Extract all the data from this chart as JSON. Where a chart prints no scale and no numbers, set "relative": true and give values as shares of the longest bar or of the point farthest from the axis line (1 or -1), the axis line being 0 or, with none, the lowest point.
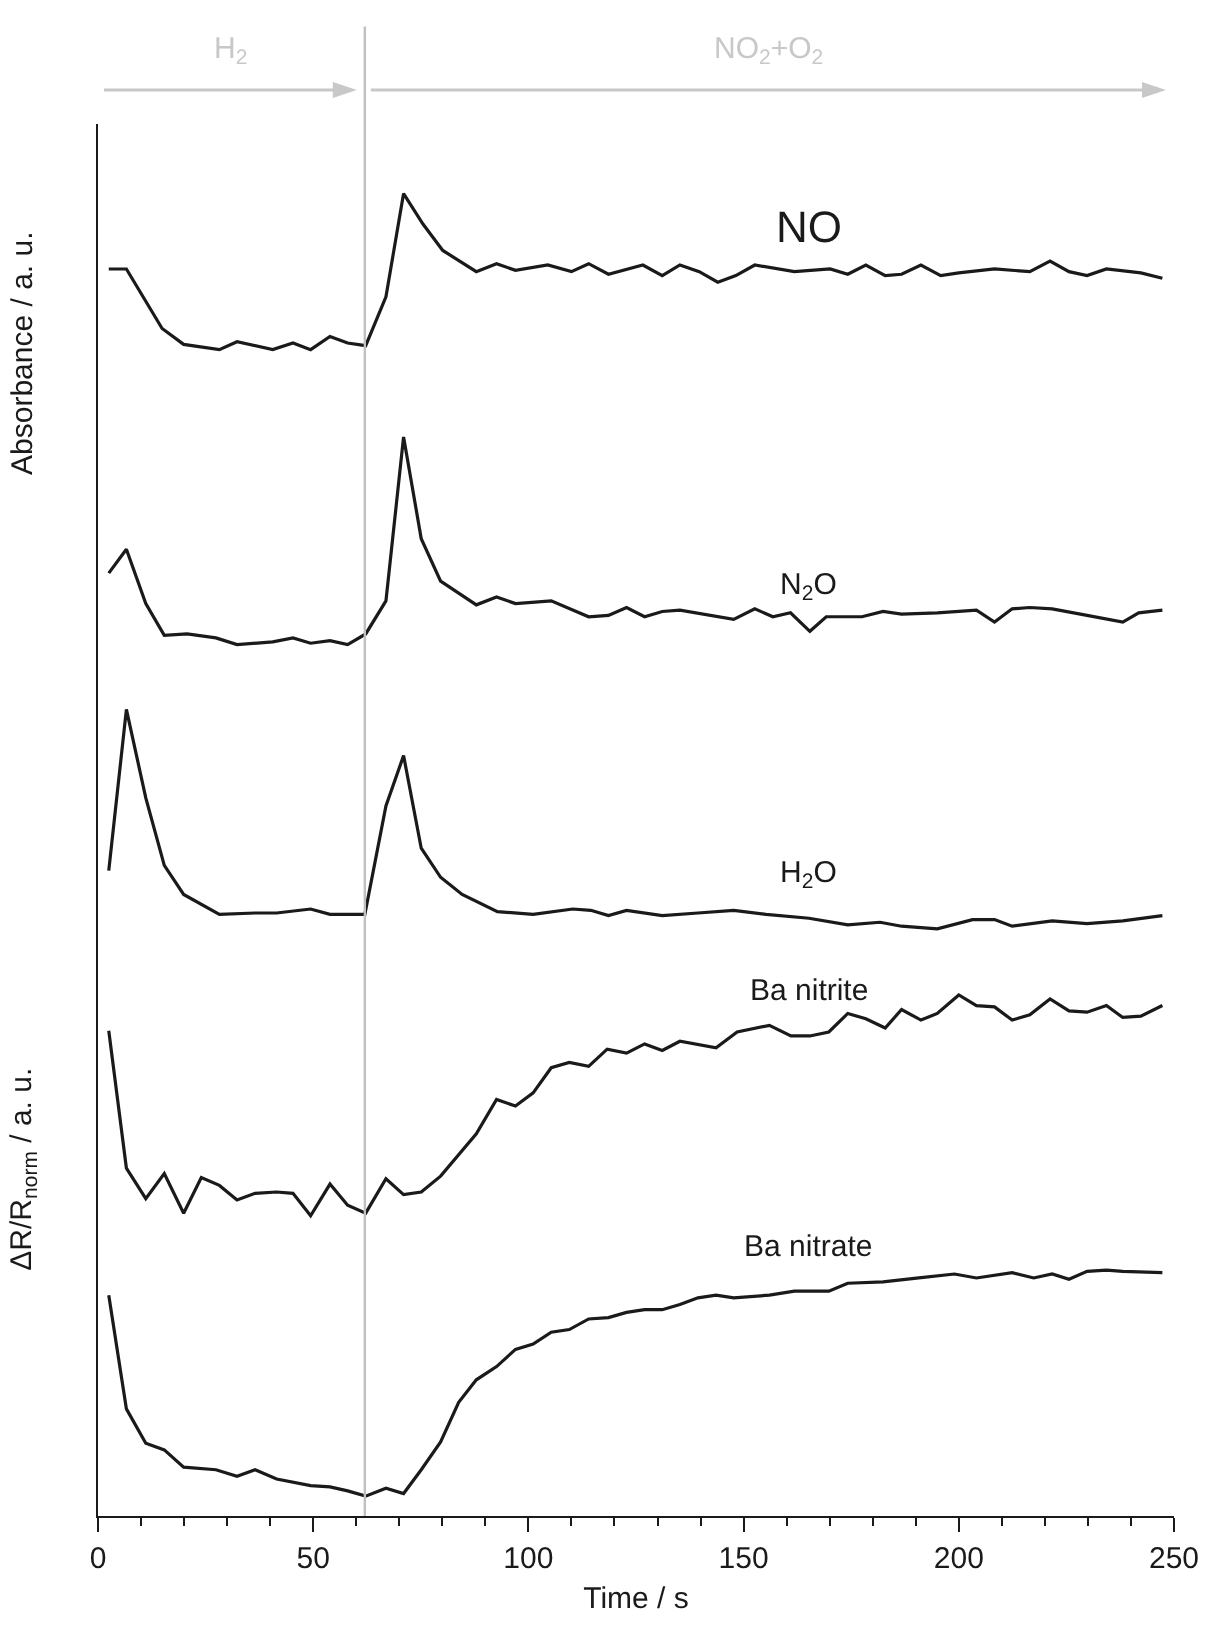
{
  "chart_data": {
    "type": "line",
    "relative": true,
    "xlabel": "Time / s",
    "ylabel": "Absorbance / a. u.",
    "annotations": [
      "ΔR/R$_{norm}$ / a. u.",
      "H$_{2}$",
      "NO$_{2}$+O$_{2}$"
    ],
    "xlim": [
      0,
      250
    ],
    "xticks": [
      0,
      50,
      100,
      150,
      200,
      250
    ],
    "grid": false,
    "legend": false,
    "marker": "none",
    "line_style": "solid",
    "ref_lines": [
      {
        "axis": "x",
        "value": 62,
        "color": "#c0c0c0"
      }
    ],
    "series": [
      {
        "name": "NO",
        "color": "#1a1a1a",
        "x": [
          2.5,
          6.6,
          14.9,
          19.9,
          28.2,
          32.3,
          40.6,
          45.3,
          49.4,
          53.9,
          58.0,
          62.2,
          66.9,
          71.0,
          75.5,
          80.1,
          87.9,
          92.6,
          97.0,
          104.5,
          110.0,
          114.0,
          118.6,
          126.6,
          131.1,
          135.2,
          139.7,
          144.0,
          148.2,
          152.6,
          161.8,
          170.1,
          174.2,
          178.4,
          182.9,
          186.7,
          191.2,
          195.8,
          200.0,
          208.3,
          216.5,
          221.2,
          225.6,
          229.8,
          234.3,
          242.3,
          247.3
        ],
        "values": [
          0.943,
          0.943,
          0.898,
          0.886,
          0.882,
          0.888,
          0.882,
          0.887,
          0.882,
          0.892,
          0.887,
          0.885,
          0.922,
          1.0,
          0.977,
          0.957,
          0.941,
          0.947,
          0.942,
          0.946,
          0.941,
          0.947,
          0.939,
          0.946,
          0.938,
          0.946,
          0.941,
          0.933,
          0.938,
          0.946,
          0.941,
          0.943,
          0.939,
          0.946,
          0.938,
          0.939,
          0.946,
          0.938,
          0.94,
          0.943,
          0.941,
          0.949,
          0.941,
          0.938,
          0.943,
          0.94,
          0.936
        ]
      },
      {
        "name": "N$_{2}$O",
        "color": "#1a1a1a",
        "x": [
          2.5,
          6.6,
          11.1,
          15.4,
          20.7,
          27.4,
          32.3,
          40.6,
          45.3,
          49.4,
          53.9,
          58.0,
          62.2,
          66.9,
          71.0,
          75.1,
          79.6,
          87.9,
          92.6,
          97.0,
          105.3,
          114.0,
          118.6,
          122.8,
          127.0,
          131.1,
          135.2,
          147.7,
          152.6,
          156.8,
          160.9,
          165.4,
          169.2,
          177.5,
          182.4,
          186.7,
          195.0,
          204.1,
          208.3,
          212.4,
          216.5,
          221.7,
          229.8,
          238.1,
          241.8,
          247.3
        ],
        "values": [
          0.713,
          0.731,
          0.69,
          0.666,
          0.667,
          0.664,
          0.659,
          0.661,
          0.664,
          0.66,
          0.662,
          0.659,
          0.667,
          0.692,
          0.816,
          0.739,
          0.707,
          0.689,
          0.695,
          0.69,
          0.692,
          0.68,
          0.681,
          0.687,
          0.68,
          0.684,
          0.685,
          0.678,
          0.686,
          0.68,
          0.683,
          0.669,
          0.68,
          0.68,
          0.684,
          0.682,
          0.683,
          0.685,
          0.676,
          0.686,
          0.687,
          0.686,
          0.681,
          0.676,
          0.683,
          0.685
        ]
      },
      {
        "name": "H$_{2}$O",
        "color": "#1a1a1a",
        "x": [
          2.5,
          6.6,
          11.1,
          15.4,
          19.9,
          28.2,
          36.5,
          41.5,
          49.4,
          53.9,
          62.0,
          66.9,
          71.0,
          75.1,
          79.6,
          84.6,
          92.8,
          101.1,
          110.3,
          114.5,
          118.6,
          122.8,
          131.1,
          139.4,
          147.7,
          155.2,
          165.2,
          174.2,
          181.7,
          186.7,
          195.0,
          203.2,
          208.3,
          212.4,
          221.7,
          229.8,
          238.1,
          247.3
        ],
        "values": [
          0.488,
          0.61,
          0.543,
          0.492,
          0.47,
          0.455,
          0.456,
          0.456,
          0.459,
          0.455,
          0.455,
          0.537,
          0.575,
          0.505,
          0.483,
          0.47,
          0.457,
          0.455,
          0.459,
          0.458,
          0.454,
          0.458,
          0.454,
          0.456,
          0.458,
          0.455,
          0.452,
          0.447,
          0.449,
          0.446,
          0.444,
          0.451,
          0.451,
          0.446,
          0.45,
          0.448,
          0.45,
          0.454
        ]
      },
      {
        "name": "Ba nitrite",
        "color": "#1a1a1a",
        "x": [
          2.5,
          6.6,
          11.1,
          15.4,
          19.9,
          24.0,
          28.2,
          32.3,
          36.5,
          41.5,
          45.3,
          49.4,
          53.9,
          58.0,
          62.2,
          66.9,
          71.0,
          75.1,
          79.6,
          87.9,
          92.6,
          97.0,
          101.1,
          105.3,
          109.5,
          114.0,
          118.3,
          122.8,
          127.0,
          131.1,
          135.2,
          143.6,
          148.5,
          156.0,
          161.0,
          165.4,
          169.8,
          174.2,
          178.4,
          182.9,
          186.7,
          191.2,
          195.0,
          200.0,
          204.1,
          208.3,
          212.4,
          216.5,
          221.2,
          225.6,
          229.8,
          234.3,
          238.1,
          242.3,
          247.3
        ],
        "values": [
          0.367,
          0.263,
          0.24,
          0.259,
          0.229,
          0.256,
          0.25,
          0.239,
          0.244,
          0.245,
          0.244,
          0.227,
          0.251,
          0.235,
          0.229,
          0.255,
          0.243,
          0.245,
          0.257,
          0.289,
          0.315,
          0.31,
          0.32,
          0.339,
          0.343,
          0.34,
          0.353,
          0.35,
          0.357,
          0.352,
          0.359,
          0.354,
          0.366,
          0.371,
          0.363,
          0.363,
          0.366,
          0.38,
          0.376,
          0.369,
          0.383,
          0.375,
          0.38,
          0.394,
          0.386,
          0.385,
          0.375,
          0.379,
          0.391,
          0.382,
          0.381,
          0.386,
          0.377,
          0.378,
          0.386
        ]
      },
      {
        "name": "Ba nitrate",
        "color": "#1a1a1a",
        "x": [
          2.5,
          6.6,
          11.1,
          15.4,
          19.9,
          27.4,
          32.3,
          36.5,
          41.5,
          49.4,
          53.9,
          58.0,
          62.2,
          66.9,
          71.0,
          75.1,
          79.6,
          83.8,
          87.9,
          92.6,
          97.0,
          101.1,
          105.3,
          109.5,
          114.0,
          118.6,
          122.8,
          127.0,
          131.1,
          135.2,
          139.4,
          143.6,
          147.7,
          156.0,
          161.8,
          169.8,
          174.2,
          182.4,
          190.7,
          199.0,
          204.1,
          212.4,
          217.4,
          221.7,
          225.6,
          229.8,
          234.3,
          238.1,
          247.3
        ],
        "values": [
          0.167,
          0.081,
          0.055,
          0.05,
          0.037,
          0.035,
          0.03,
          0.035,
          0.028,
          0.023,
          0.022,
          0.019,
          0.015,
          0.021,
          0.017,
          0.035,
          0.056,
          0.086,
          0.103,
          0.113,
          0.126,
          0.13,
          0.139,
          0.141,
          0.149,
          0.15,
          0.154,
          0.156,
          0.156,
          0.16,
          0.165,
          0.167,
          0.165,
          0.167,
          0.17,
          0.17,
          0.176,
          0.177,
          0.18,
          0.183,
          0.18,
          0.184,
          0.18,
          0.183,
          0.179,
          0.185,
          0.186,
          0.185,
          0.184
        ]
      }
    ]
  }
}
